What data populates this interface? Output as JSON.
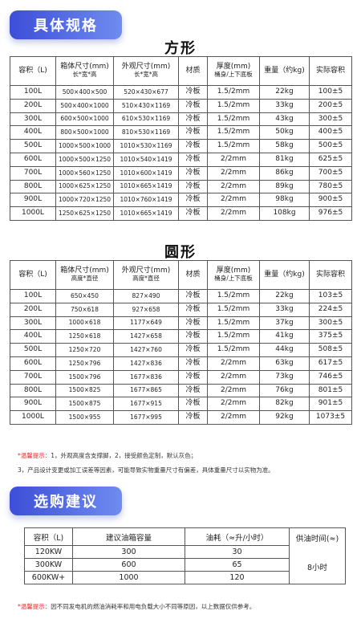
{
  "spec_banner": "具体规格",
  "square": {
    "title": "方形",
    "headers": {
      "capacity": "容积（L)",
      "box_size": "箱体尺寸(mm)",
      "box_size_sub": "长*宽*高",
      "outer_size": "外观尺寸(mm)",
      "outer_size_sub": "长*宽*高",
      "material": "材质",
      "thickness": "厚度(mm)",
      "thickness_sub": "桶身/上下底板",
      "weight": "重量（约kg)",
      "actual": "实际容积"
    },
    "rows": [
      {
        "capacity": "100L",
        "box": "500×400×500",
        "outer": "520×430×677",
        "material": "冷板",
        "thickness": "1.5/2mm",
        "weight": "22kg",
        "actual": "100±5"
      },
      {
        "capacity": "200L",
        "box": "500×400×1000",
        "outer": "510×430×1169",
        "material": "冷板",
        "thickness": "1.5/2mm",
        "weight": "33kg",
        "actual": "200±5"
      },
      {
        "capacity": "300L",
        "box": "600×500×1000",
        "outer": "610×530×1169",
        "material": "冷板",
        "thickness": "1.5/2mm",
        "weight": "43kg",
        "actual": "300±5"
      },
      {
        "capacity": "400L",
        "box": "800×500×1000",
        "outer": "810×530×1169",
        "material": "冷板",
        "thickness": "1.5/2mm",
        "weight": "50kg",
        "actual": "400±5"
      },
      {
        "capacity": "500L",
        "box": "1000×500×1000",
        "outer": "1010×530×1169",
        "material": "冷板",
        "thickness": "1.5/2mm",
        "weight": "58kg",
        "actual": "500±5"
      },
      {
        "capacity": "600L",
        "box": "1000×500×1250",
        "outer": "1010×540×1419",
        "material": "冷板",
        "thickness": "2/2mm",
        "weight": "81kg",
        "actual": "625±5"
      },
      {
        "capacity": "700L",
        "box": "1000×560×1250",
        "outer": "1010×600×1419",
        "material": "冷板",
        "thickness": "2/2mm",
        "weight": "86kg",
        "actual": "700±5"
      },
      {
        "capacity": "800L",
        "box": "1000×625×1250",
        "outer": "1010×665×1419",
        "material": "冷板",
        "thickness": "2/2mm",
        "weight": "89kg",
        "actual": "780±5"
      },
      {
        "capacity": "900L",
        "box": "1000×720×1250",
        "outer": "1010×760×1419",
        "material": "冷板",
        "thickness": "2/2mm",
        "weight": "98kg",
        "actual": "900±5"
      },
      {
        "capacity": "1000L",
        "box": "1250×625×1250",
        "outer": "1010×665×1419",
        "material": "冷板",
        "thickness": "2/2mm",
        "weight": "108kg",
        "actual": "976±5"
      }
    ]
  },
  "round": {
    "title": "圆形",
    "headers": {
      "capacity": "容积（L)",
      "box_size": "箱体尺寸(mm)",
      "box_size_sub": "高度*直径",
      "outer_size": "外观尺寸(mm)",
      "outer_size_sub": "高度*直径",
      "material": "材质",
      "thickness": "厚度(mm)",
      "thickness_sub": "桶身/上下底板",
      "weight": "重量（约kg)",
      "actual": "实际容积"
    },
    "rows": [
      {
        "capacity": "100L",
        "box": "650×450",
        "outer": "827×490",
        "material": "冷板",
        "thickness": "1.5/2mm",
        "weight": "22kg",
        "actual": "103±5"
      },
      {
        "capacity": "200L",
        "box": "750×618",
        "outer": "927×658",
        "material": "冷板",
        "thickness": "1.5/2mm",
        "weight": "33kg",
        "actual": "224±5"
      },
      {
        "capacity": "300L",
        "box": "1000×618",
        "outer": "1177×649",
        "material": "冷板",
        "thickness": "1.5/2mm",
        "weight": "37kg",
        "actual": "300±5"
      },
      {
        "capacity": "400L",
        "box": "1250×618",
        "outer": "1427×658",
        "material": "冷板",
        "thickness": "1.5/2mm",
        "weight": "41kg",
        "actual": "375±5"
      },
      {
        "capacity": "500L",
        "box": "1250×720",
        "outer": "1427×760",
        "material": "冷板",
        "thickness": "1.5/2mm",
        "weight": "44kg",
        "actual": "508±5"
      },
      {
        "capacity": "600L",
        "box": "1250×796",
        "outer": "1427×836",
        "material": "冷板",
        "thickness": "2/2mm",
        "weight": "63kg",
        "actual": "617±5"
      },
      {
        "capacity": "700L",
        "box": "1500×796",
        "outer": "1677×836",
        "material": "冷板",
        "thickness": "2/2mm",
        "weight": "73kg",
        "actual": "746±5"
      },
      {
        "capacity": "800L",
        "box": "1500×825",
        "outer": "1677×865",
        "material": "冷板",
        "thickness": "2/2mm",
        "weight": "76kg",
        "actual": "801±5"
      },
      {
        "capacity": "900L",
        "box": "1500×875",
        "outer": "1677×915",
        "material": "冷板",
        "thickness": "2/2mm",
        "weight": "82kg",
        "actual": "901±5"
      },
      {
        "capacity": "1000L",
        "box": "1500×955",
        "outer": "1677×995",
        "material": "冷板",
        "thickness": "2/2mm",
        "weight": "92kg",
        "actual": "1073±5"
      }
    ]
  },
  "notes": {
    "tip_label": "*温馨提示：",
    "line1": "1，外观高度含支撑脚，2，接受颜色定制，默认灰色；",
    "line2": "3，产品设计变更或加工误差等因素，可能导致实物重量尺寸有偏差，具体重量尺寸以实物为准。"
  },
  "buy_banner": "选购建议",
  "buy": {
    "headers": {
      "capacity": "容积（L)",
      "tank": "建议油箱容量",
      "consumption": "油耗（≈升/小时）",
      "supply": "供油时间(≈)"
    },
    "rows": [
      {
        "capacity": "120KW",
        "tank": "300",
        "consumption": "30"
      },
      {
        "capacity": "300KW",
        "tank": "600",
        "consumption": "65"
      },
      {
        "capacity": "600KW+",
        "tank": "1000",
        "consumption": "120"
      }
    ],
    "supply_time": "8小时"
  },
  "bottom_note": {
    "tip_label": "*温馨提示：",
    "text": "因不同发电机的燃油消耗率和用电负载大小不同等原因，以上数据仅供参考。"
  }
}
